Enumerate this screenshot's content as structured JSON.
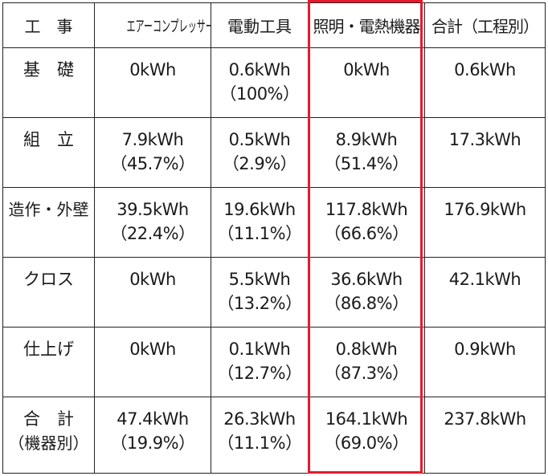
{
  "header": {
    "col0": "工　事",
    "col1": "エアーコンプレッサー",
    "col2": "電動工具",
    "col3": "照明・電熱機器",
    "col4": "合計（工程別）"
  },
  "rows": [
    {
      "label": "基　礎",
      "label_sub": "",
      "compressor": {
        "value": "0kWh",
        "pct": ""
      },
      "power_tools": {
        "value": "0.6kWh",
        "pct": "（100%）"
      },
      "lighting": {
        "value": "0kWh",
        "pct": ""
      },
      "total": {
        "value": "0.6kWh"
      }
    },
    {
      "label": "組　立",
      "label_sub": "",
      "compressor": {
        "value": "7.9kWh",
        "pct": "（45.7%）"
      },
      "power_tools": {
        "value": "0.5kWh",
        "pct": "（2.9%）"
      },
      "lighting": {
        "value": "8.9kWh",
        "pct": "（51.4%）"
      },
      "total": {
        "value": "17.3kWh"
      }
    },
    {
      "label": "造作・外壁",
      "label_sub": "",
      "compressor": {
        "value": "39.5kWh",
        "pct": "（22.4%）"
      },
      "power_tools": {
        "value": "19.6kWh",
        "pct": "（11.1%）"
      },
      "lighting": {
        "value": "117.8kWh",
        "pct": "（66.6%）"
      },
      "total": {
        "value": "176.9kWh"
      }
    },
    {
      "label": "クロス",
      "label_sub": "",
      "compressor": {
        "value": "0kWh",
        "pct": ""
      },
      "power_tools": {
        "value": "5.5kWh",
        "pct": "（13.2%）"
      },
      "lighting": {
        "value": "36.6kWh",
        "pct": "（86.8%）"
      },
      "total": {
        "value": "42.1kWh"
      }
    },
    {
      "label": "仕上げ",
      "label_sub": "",
      "compressor": {
        "value": "0kWh",
        "pct": ""
      },
      "power_tools": {
        "value": "0.1kWh",
        "pct": "（12.7%）"
      },
      "lighting": {
        "value": "0.8kWh",
        "pct": "（87.3%）"
      },
      "total": {
        "value": "0.9kWh"
      }
    },
    {
      "label": "合　計",
      "label_sub": "（機器別）",
      "compressor": {
        "value": "47.4kWh",
        "pct": "（19.9%）"
      },
      "power_tools": {
        "value": "26.3kWh",
        "pct": "（11.1%）"
      },
      "lighting": {
        "value": "164.1kWh",
        "pct": "（69.0%）"
      },
      "total": {
        "value": "237.8kWh"
      }
    }
  ],
  "highlight_color": "#e8192c"
}
